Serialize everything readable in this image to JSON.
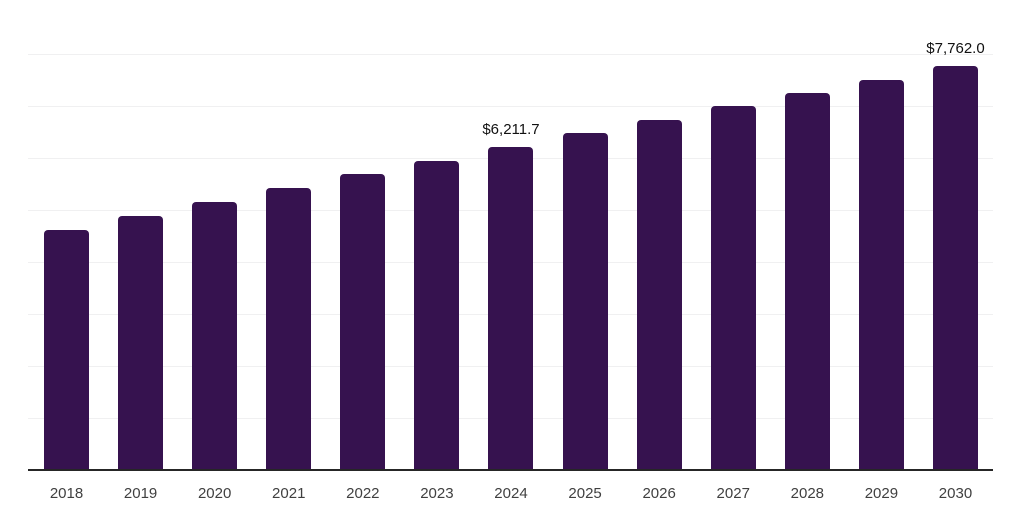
{
  "chart_data": {
    "type": "bar",
    "title": "",
    "xlabel": "",
    "ylabel": "",
    "categories": [
      "2018",
      "2019",
      "2020",
      "2021",
      "2022",
      "2023",
      "2024",
      "2025",
      "2026",
      "2027",
      "2028",
      "2029",
      "2030"
    ],
    "values": [
      4615,
      4890,
      5160,
      5430,
      5700,
      5935,
      6211.7,
      6485,
      6740,
      7000,
      7255,
      7500,
      7762
    ],
    "point_labels": [
      "",
      "",
      "",
      "",
      "",
      "",
      "$6,211.7",
      "",
      "",
      "",
      "",
      "",
      "$7,762.0"
    ],
    "ylim": [
      0,
      9040
    ],
    "gridline_step": 1000,
    "grid": "horizontal-only",
    "legend": "none",
    "colors": {
      "bar": "#36124f",
      "axis_line": "#262626",
      "gridline": "#f0f0f1",
      "tick_label": "#404040",
      "data_label": "#111111",
      "background": "#ffffff"
    }
  }
}
